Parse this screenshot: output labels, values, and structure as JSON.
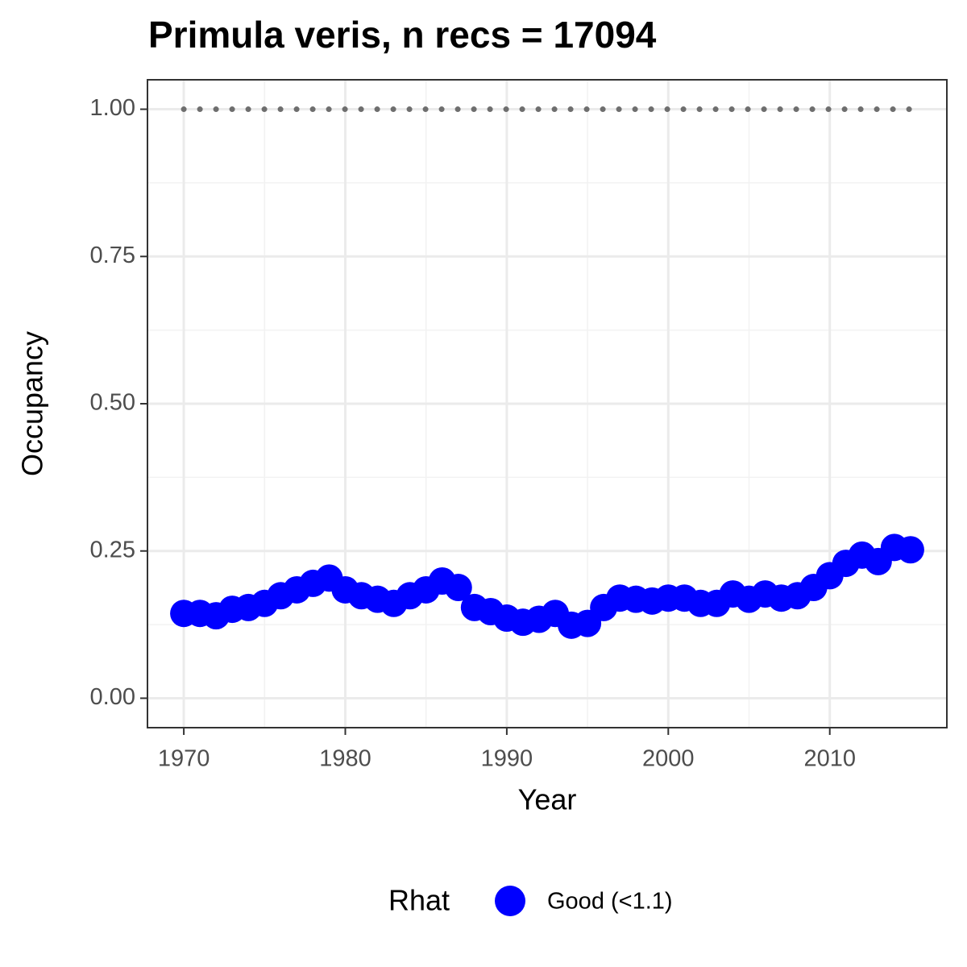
{
  "chart_data": {
    "type": "scatter",
    "title": "Primula veris, n recs = 17094",
    "x_label": "Year",
    "y_label": "Occupancy",
    "x": [
      1970,
      1971,
      1972,
      1973,
      1974,
      1975,
      1976,
      1977,
      1978,
      1979,
      1980,
      1981,
      1982,
      1983,
      1984,
      1985,
      1986,
      1987,
      1988,
      1989,
      1990,
      1991,
      1992,
      1993,
      1994,
      1995,
      1996,
      1997,
      1998,
      1999,
      2000,
      2001,
      2002,
      2003,
      2004,
      2005,
      2006,
      2007,
      2008,
      2009,
      2010,
      2011,
      2012,
      2013,
      2014,
      2015
    ],
    "series": [
      {
        "name": "Good (<1.1)",
        "color": "#0000ff",
        "values": [
          0.144,
          0.144,
          0.14,
          0.151,
          0.154,
          0.161,
          0.174,
          0.184,
          0.195,
          0.204,
          0.184,
          0.174,
          0.168,
          0.161,
          0.174,
          0.184,
          0.199,
          0.188,
          0.154,
          0.147,
          0.136,
          0.129,
          0.134,
          0.144,
          0.124,
          0.127,
          0.154,
          0.17,
          0.168,
          0.165,
          0.17,
          0.17,
          0.161,
          0.161,
          0.177,
          0.168,
          0.177,
          0.17,
          0.174,
          0.188,
          0.208,
          0.229,
          0.243,
          0.232,
          0.256,
          0.252
        ]
      }
    ],
    "reference_line": {
      "value": 1,
      "color": "#6e6e6e"
    },
    "legend_title": "Rhat",
    "legend_position": "bottom",
    "xlim": [
      1967.75,
      2017.25
    ],
    "xticks": [
      1970,
      1980,
      1990,
      2000,
      2010
    ],
    "ylim": [
      -0.05,
      1.05
    ],
    "yticks": [
      {
        "value": 0,
        "label": "0.00"
      },
      {
        "value": 0.25,
        "label": "0.25"
      },
      {
        "value": 0.5,
        "label": "0.50"
      },
      {
        "value": 0.75,
        "label": "0.75"
      },
      {
        "value": 1,
        "label": "1.00"
      }
    ],
    "grid": true
  }
}
